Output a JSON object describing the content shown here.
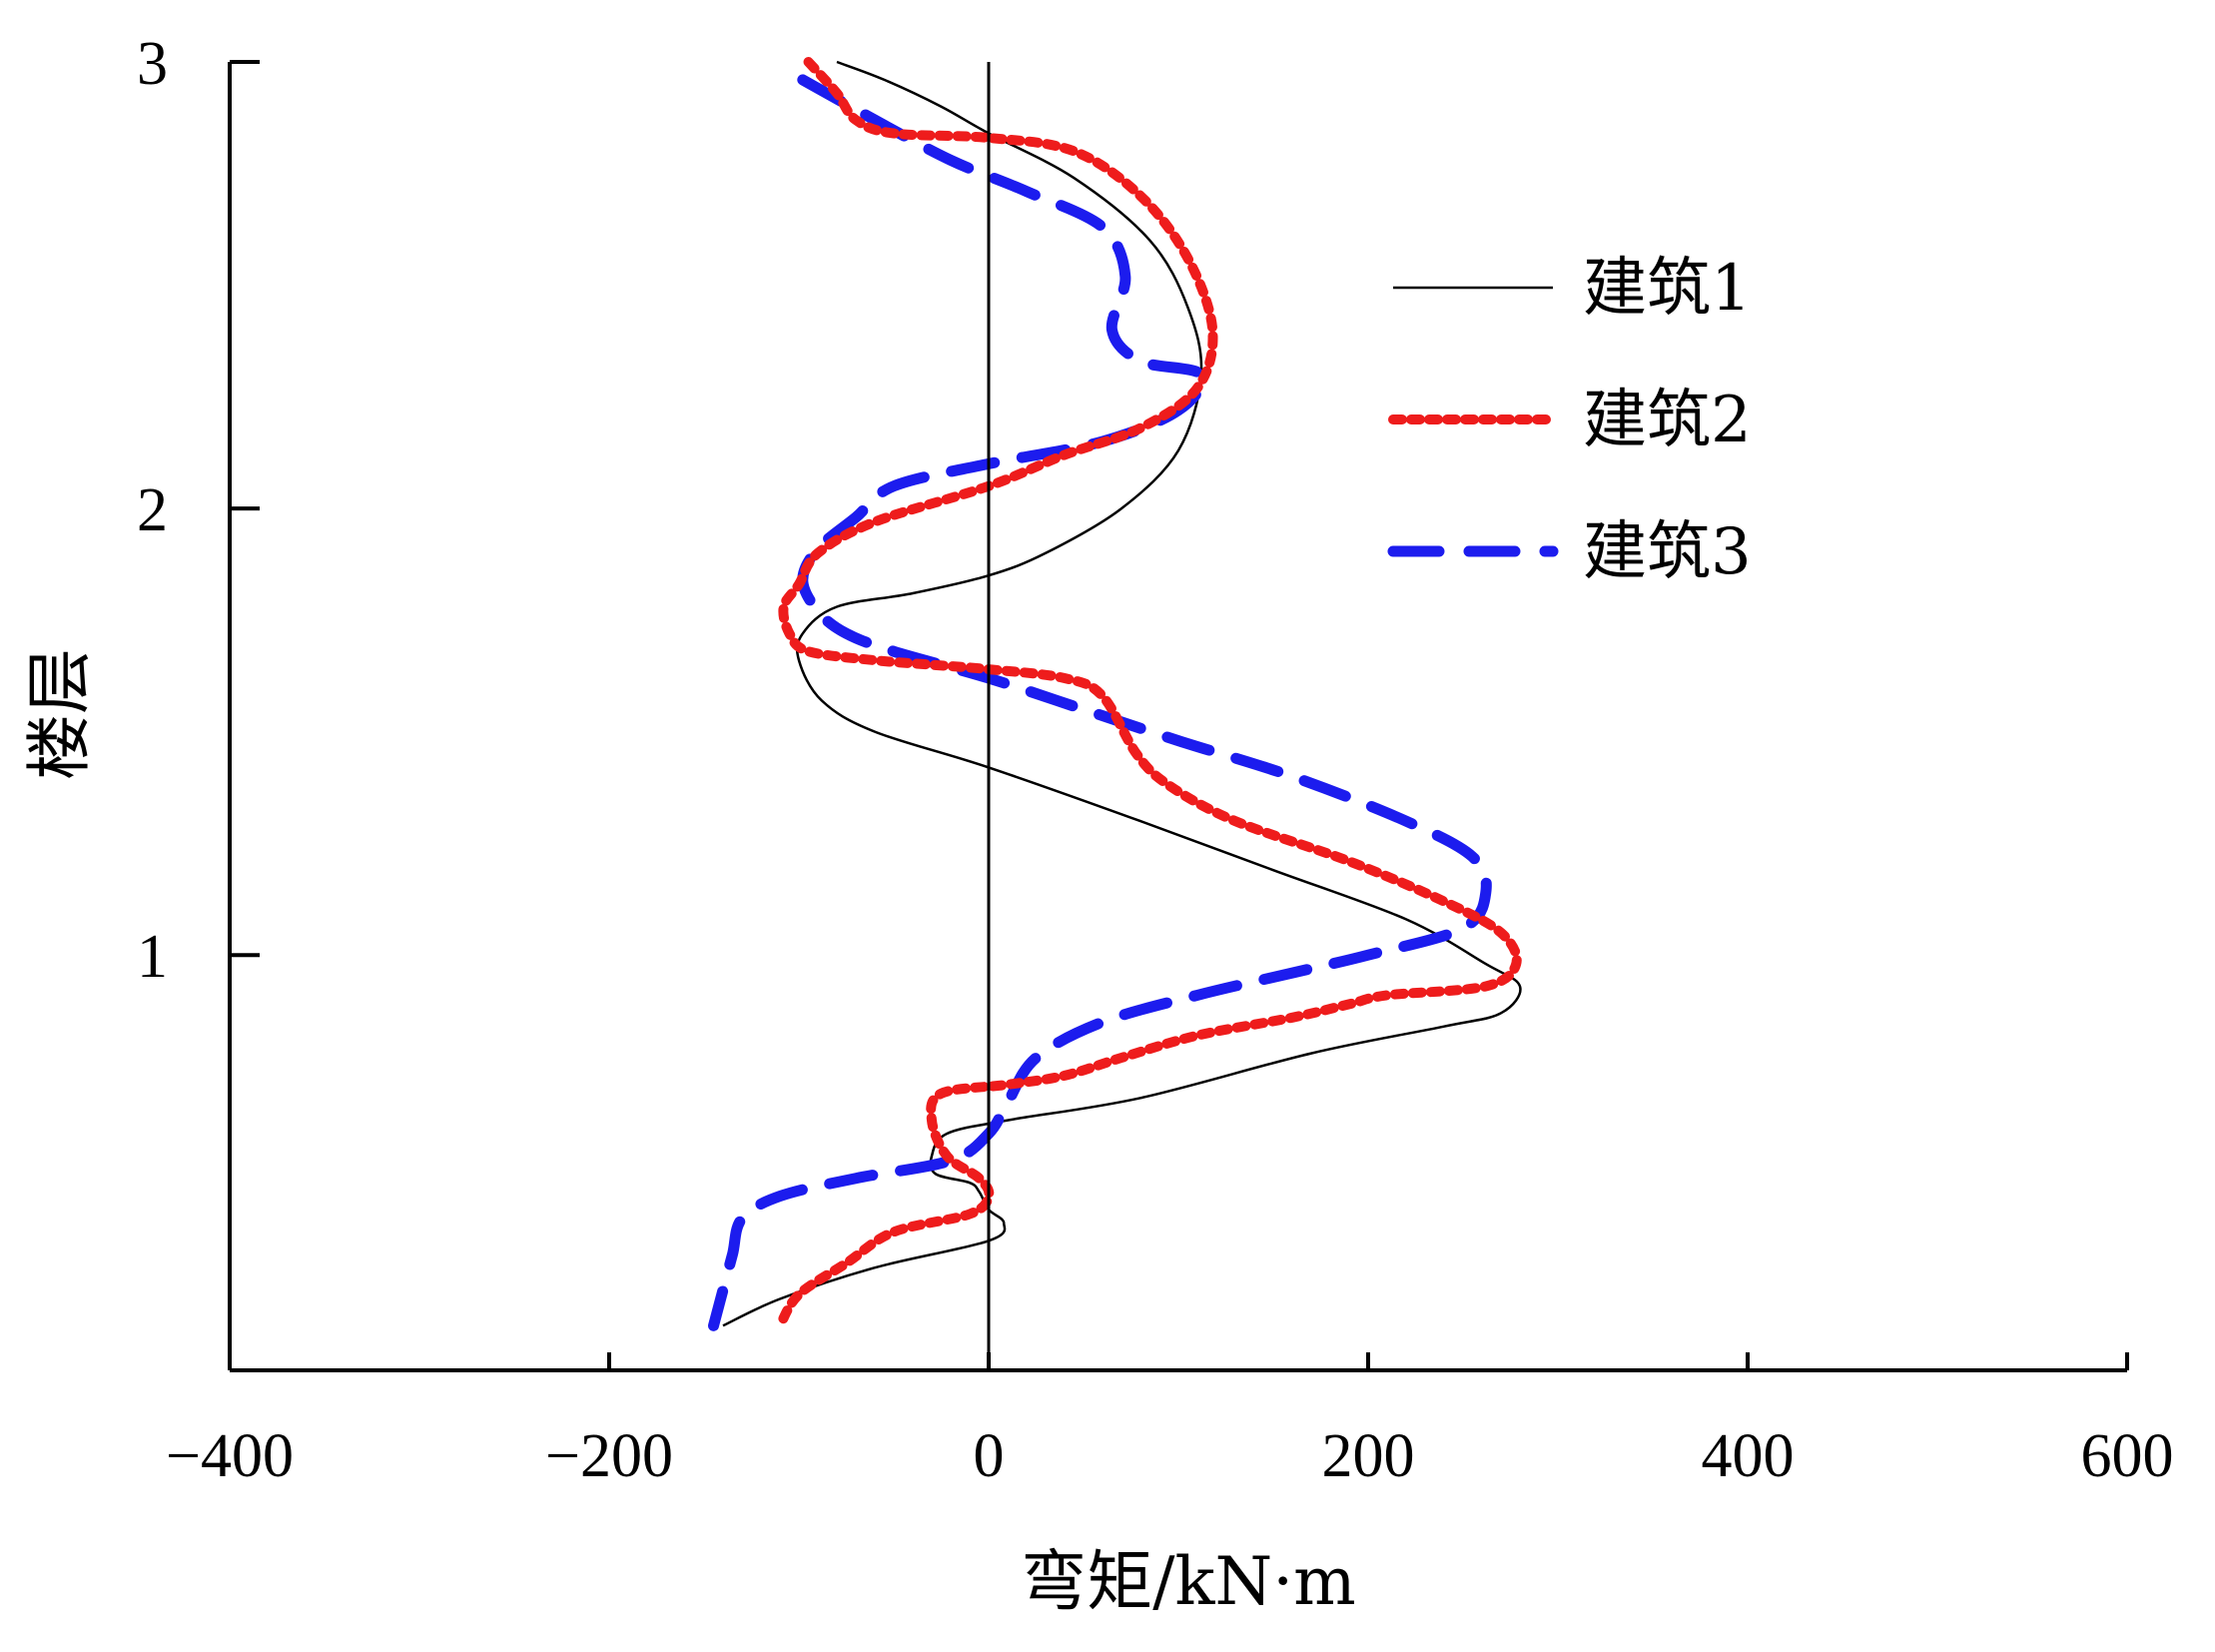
{
  "chart_data": {
    "type": "line",
    "title": "",
    "xlabel": "弯矩/kN·m",
    "ylabel": "楼层",
    "xlim": [
      -400,
      600
    ],
    "ylim": [
      0.07,
      3
    ],
    "xticks": [
      -400,
      -200,
      0,
      200,
      400,
      600
    ],
    "xtick_labels": [
      "−400",
      "−200",
      "0",
      "200",
      "400",
      "600"
    ],
    "yticks": [
      1,
      2,
      3
    ],
    "ytick_labels": [
      "1",
      "2",
      "3"
    ],
    "grid": false,
    "legend_position": "top-right",
    "reference_line_x": 0,
    "series": [
      {
        "name": "建筑1",
        "color": "#000000",
        "style": "solid",
        "points": [
          [
            -80,
            3.0
          ],
          [
            -55,
            2.96
          ],
          [
            -25,
            2.9
          ],
          [
            0,
            2.84
          ],
          [
            45,
            2.74
          ],
          [
            85,
            2.6
          ],
          [
            105,
            2.45
          ],
          [
            112,
            2.3
          ],
          [
            100,
            2.13
          ],
          [
            70,
            2.0
          ],
          [
            30,
            1.9
          ],
          [
            0,
            1.85
          ],
          [
            -40,
            1.81
          ],
          [
            -80,
            1.78
          ],
          [
            -98,
            1.72
          ],
          [
            -100,
            1.66
          ],
          [
            -88,
            1.57
          ],
          [
            -60,
            1.5
          ],
          [
            0,
            1.42
          ],
          [
            80,
            1.3
          ],
          [
            150,
            1.19
          ],
          [
            220,
            1.08
          ],
          [
            262,
            0.98
          ],
          [
            280,
            0.93
          ],
          [
            270,
            0.87
          ],
          [
            240,
            0.84
          ],
          [
            170,
            0.78
          ],
          [
            80,
            0.68
          ],
          [
            10,
            0.63
          ],
          [
            -22,
            0.6
          ],
          [
            -30,
            0.55
          ],
          [
            -28,
            0.51
          ],
          [
            -10,
            0.49
          ],
          [
            -5,
            0.47
          ],
          [
            0,
            0.43
          ],
          [
            8,
            0.4
          ],
          [
            0,
            0.36
          ],
          [
            -60,
            0.3
          ],
          [
            -110,
            0.23
          ],
          [
            -140,
            0.17
          ]
        ]
      },
      {
        "name": "建筑2",
        "color": "#ee1c1c",
        "style": "dotted",
        "points": [
          [
            -95,
            3.0
          ],
          [
            -80,
            2.93
          ],
          [
            -70,
            2.87
          ],
          [
            -50,
            2.84
          ],
          [
            0,
            2.83
          ],
          [
            45,
            2.8
          ],
          [
            80,
            2.7
          ],
          [
            105,
            2.56
          ],
          [
            118,
            2.4
          ],
          [
            110,
            2.27
          ],
          [
            80,
            2.18
          ],
          [
            40,
            2.12
          ],
          [
            0,
            2.05
          ],
          [
            -60,
            1.97
          ],
          [
            -90,
            1.9
          ],
          [
            -100,
            1.83
          ],
          [
            -108,
            1.78
          ],
          [
            -105,
            1.72
          ],
          [
            -95,
            1.68
          ],
          [
            -60,
            1.66
          ],
          [
            -30,
            1.65
          ],
          [
            0,
            1.64
          ],
          [
            40,
            1.62
          ],
          [
            60,
            1.58
          ],
          [
            78,
            1.45
          ],
          [
            95,
            1.38
          ],
          [
            130,
            1.3
          ],
          [
            190,
            1.21
          ],
          [
            240,
            1.12
          ],
          [
            270,
            1.05
          ],
          [
            278,
            0.98
          ],
          [
            262,
            0.93
          ],
          [
            210,
            0.91
          ],
          [
            190,
            0.89
          ],
          [
            160,
            0.86
          ],
          [
            110,
            0.82
          ],
          [
            70,
            0.77
          ],
          [
            40,
            0.73
          ],
          [
            10,
            0.71
          ],
          [
            -25,
            0.69
          ],
          [
            -30,
            0.63
          ],
          [
            -22,
            0.55
          ],
          [
            -5,
            0.5
          ],
          [
            0,
            0.46
          ],
          [
            -10,
            0.42
          ],
          [
            -50,
            0.38
          ],
          [
            -75,
            0.31
          ],
          [
            -100,
            0.24
          ],
          [
            -110,
            0.17
          ]
        ]
      },
      {
        "name": "建筑3",
        "color": "#1c1cee",
        "style": "dashed",
        "points": [
          [
            -98,
            2.96
          ],
          [
            -60,
            2.87
          ],
          [
            -20,
            2.78
          ],
          [
            20,
            2.71
          ],
          [
            60,
            2.63
          ],
          [
            72,
            2.52
          ],
          [
            65,
            2.4
          ],
          [
            80,
            2.33
          ],
          [
            112,
            2.3
          ],
          [
            100,
            2.22
          ],
          [
            60,
            2.15
          ],
          [
            0,
            2.1
          ],
          [
            -50,
            2.05
          ],
          [
            -70,
            1.98
          ],
          [
            -90,
            1.91
          ],
          [
            -98,
            1.84
          ],
          [
            -90,
            1.77
          ],
          [
            -75,
            1.72
          ],
          [
            -50,
            1.68
          ],
          [
            0,
            1.62
          ],
          [
            50,
            1.55
          ],
          [
            100,
            1.48
          ],
          [
            160,
            1.4
          ],
          [
            220,
            1.3
          ],
          [
            255,
            1.22
          ],
          [
            262,
            1.14
          ],
          [
            250,
            1.06
          ],
          [
            200,
            1.0
          ],
          [
            160,
            0.96
          ],
          [
            110,
            0.91
          ],
          [
            60,
            0.85
          ],
          [
            25,
            0.77
          ],
          [
            10,
            0.67
          ],
          [
            0,
            0.6
          ],
          [
            -20,
            0.54
          ],
          [
            -70,
            0.5
          ],
          [
            -110,
            0.46
          ],
          [
            -130,
            0.41
          ],
          [
            -135,
            0.33
          ],
          [
            -140,
            0.25
          ],
          [
            -145,
            0.17
          ]
        ]
      }
    ]
  }
}
